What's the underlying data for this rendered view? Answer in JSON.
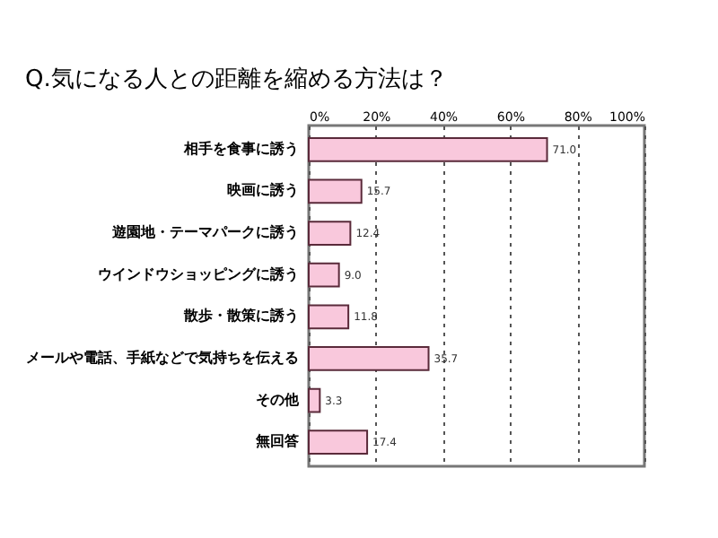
{
  "chart_data": {
    "type": "bar",
    "orientation": "horizontal",
    "title": "Q.気になる人との距離を縮める方法は？",
    "categories": [
      "相手を食事に誘う",
      "映画に誘う",
      "遊園地・テーマパークに誘う",
      "ウインドウショッピングに誘う",
      "散歩・散策に誘う",
      "メールや電話、手紙などで気持ちを伝える",
      "その他",
      "無回答"
    ],
    "values": [
      71.0,
      15.7,
      12.4,
      9.0,
      11.8,
      35.7,
      3.3,
      17.4
    ],
    "value_labels": [
      "71.0",
      "15.7",
      "12.4",
      "9.0",
      "11.8",
      "35.7",
      "3.3",
      "17.4"
    ],
    "color": "#f9c8dc",
    "xlim": [
      0,
      100
    ],
    "xticks": [
      {
        "value": 0,
        "label": "0%"
      },
      {
        "value": 20,
        "label": "20%"
      },
      {
        "value": 40,
        "label": "40%"
      },
      {
        "value": 60,
        "label": "60%"
      },
      {
        "value": 80,
        "label": "80%"
      },
      {
        "value": 100,
        "label": "100%"
      }
    ],
    "grid": "x"
  }
}
